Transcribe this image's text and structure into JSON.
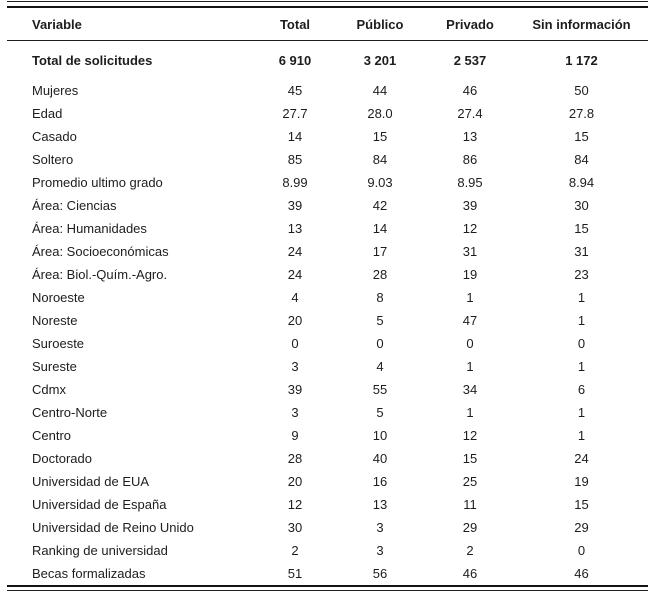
{
  "table": {
    "columns": [
      "Variable",
      "Total",
      "Público",
      "Privado",
      "Sin información"
    ],
    "rows": [
      {
        "label": "Total de solicitudes",
        "values": [
          "6 910",
          "3 201",
          "2 537",
          "1 172"
        ],
        "emphasis": true
      },
      {
        "label": "Mujeres",
        "values": [
          "45",
          "44",
          "46",
          "50"
        ]
      },
      {
        "label": "Edad",
        "values": [
          "27.7",
          "28.0",
          "27.4",
          "27.8"
        ]
      },
      {
        "label": "Casado",
        "values": [
          "14",
          "15",
          "13",
          "15"
        ]
      },
      {
        "label": "Soltero",
        "values": [
          "85",
          "84",
          "86",
          "84"
        ]
      },
      {
        "label": "Promedio ultimo grado",
        "values": [
          "8.99",
          "9.03",
          "8.95",
          "8.94"
        ]
      },
      {
        "label": "Área: Ciencias",
        "values": [
          "39",
          "42",
          "39",
          "30"
        ]
      },
      {
        "label": "Área: Humanidades",
        "values": [
          "13",
          "14",
          "12",
          "15"
        ]
      },
      {
        "label": "Área: Socioeconómicas",
        "values": [
          "24",
          "17",
          "31",
          "31"
        ]
      },
      {
        "label": "Área: Biol.-Quím.-Agro.",
        "values": [
          "24",
          "28",
          "19",
          "23"
        ]
      },
      {
        "label": "Noroeste",
        "values": [
          "4",
          "8",
          "1",
          "1"
        ]
      },
      {
        "label": "Noreste",
        "values": [
          "20",
          "5",
          "47",
          "1"
        ]
      },
      {
        "label": "Suroeste",
        "values": [
          "0",
          "0",
          "0",
          "0"
        ]
      },
      {
        "label": "Sureste",
        "values": [
          "3",
          "4",
          "1",
          "1"
        ]
      },
      {
        "label": "Cdmx",
        "values": [
          "39",
          "55",
          "34",
          "6"
        ]
      },
      {
        "label": "Centro-Norte",
        "values": [
          "3",
          "5",
          "1",
          "1"
        ]
      },
      {
        "label": "Centro",
        "values": [
          "9",
          "10",
          "12",
          "1"
        ]
      },
      {
        "label": "Doctorado",
        "values": [
          "28",
          "40",
          "15",
          "24"
        ]
      },
      {
        "label": "Universidad de EUA",
        "values": [
          "20",
          "16",
          "25",
          "19"
        ]
      },
      {
        "label": "Universidad de España",
        "values": [
          "12",
          "13",
          "11",
          "15"
        ]
      },
      {
        "label": "Universidad de Reino Unido",
        "values": [
          "30",
          "3",
          "29",
          "29"
        ]
      },
      {
        "label": "Ranking de universidad",
        "values": [
          "2",
          "3",
          "2",
          "0"
        ]
      },
      {
        "label": "Becas formalizadas",
        "values": [
          "51",
          "56",
          "46",
          "46"
        ]
      }
    ],
    "colors": {
      "text": "#1d1d1d",
      "rule": "#1f1f1f",
      "background": "#ffffff"
    }
  }
}
